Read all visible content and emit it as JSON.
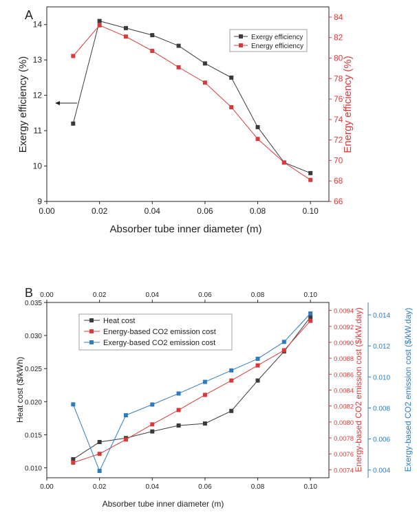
{
  "colors": {
    "black": "#3a3a3a",
    "red": "#d83a3a",
    "blue": "#2f7bbf",
    "axis": "#222222"
  },
  "chart_data": [
    {
      "panel_label": "A",
      "type": "line",
      "xlabel": "Absorber tube inner diameter (m)",
      "ylabel_left": "Exergy efficiency (%)",
      "ylabel_right": "Energy efficiency (%)",
      "xlim": [
        0.0,
        0.107
      ],
      "xticks": [
        "0.00",
        "0.02",
        "0.04",
        "0.06",
        "0.08",
        "0.10"
      ],
      "ylim_left": [
        9,
        14.5
      ],
      "yticks_left": [
        "9",
        "10",
        "11",
        "12",
        "13",
        "14"
      ],
      "ylim_right": [
        66,
        85
      ],
      "yticks_right": [
        "66",
        "68",
        "70",
        "72",
        "74",
        "76",
        "78",
        "80",
        "82",
        "84"
      ],
      "legend_position": "top-right",
      "annotation": "arrow pointing to left axis",
      "x": [
        0.01,
        0.02,
        0.03,
        0.04,
        0.05,
        0.06,
        0.07,
        0.08,
        0.09,
        0.1
      ],
      "series": [
        {
          "name": "Exergy efficiency",
          "axis": "left",
          "color": "black",
          "values": [
            11.2,
            14.1,
            13.9,
            13.7,
            13.4,
            12.9,
            12.5,
            11.1,
            10.1,
            9.8
          ]
        },
        {
          "name": "Energy efficiency",
          "axis": "right",
          "color": "red",
          "values": [
            80.2,
            83.2,
            82.1,
            80.7,
            79.1,
            77.6,
            75.2,
            72.1,
            69.8,
            68.1
          ]
        }
      ]
    },
    {
      "panel_label": "B",
      "type": "line",
      "xlabel": "Absorber tube inner diameter (m)",
      "ylabel_left": "Heat cost ($/kWh)",
      "ylabel_right": "Energy-based CO2 emission cost ($/kW.day)",
      "ylabel_right2": "Exergy-based CO2 emission cost ($/kW.day)",
      "xlim": [
        0.0,
        0.107
      ],
      "xticks": [
        "0.00",
        "0.02",
        "0.04",
        "0.06",
        "0.08",
        "0.10"
      ],
      "top_xticks": [
        "0.00",
        "0.02",
        "0.04",
        "0.06",
        "0.08",
        "0.10"
      ],
      "ylim_left": [
        0.0085,
        0.035
      ],
      "yticks_left": [
        "0.010",
        "0.015",
        "0.020",
        "0.025",
        "0.030",
        "0.035"
      ],
      "ylim_right": [
        0.0073,
        0.0095
      ],
      "yticks_right": [
        "0.0074",
        "0.0076",
        "0.0078",
        "0.0080",
        "0.0082",
        "0.0084",
        "0.0086",
        "0.0088",
        "0.0090",
        "0.0092",
        "0.0094"
      ],
      "ylim_right2": [
        0.0035,
        0.0148
      ],
      "yticks_right2": [
        "0.004",
        "0.006",
        "0.008",
        "0.010",
        "0.012",
        "0.014"
      ],
      "legend_position": "top-left",
      "x": [
        0.01,
        0.02,
        0.03,
        0.04,
        0.05,
        0.06,
        0.07,
        0.08,
        0.09,
        0.1
      ],
      "series": [
        {
          "name": "Heat cost",
          "axis": "left",
          "color": "black",
          "values": [
            0.0113,
            0.0139,
            0.0145,
            0.0155,
            0.0164,
            0.0167,
            0.0186,
            0.0232,
            0.0276,
            0.0328
          ]
        },
        {
          "name": "Energy-based CO2 emission cost",
          "axis": "right",
          "color": "red",
          "values": [
            0.00749,
            0.0076,
            0.00778,
            0.00797,
            0.00815,
            0.00834,
            0.00852,
            0.00871,
            0.0089,
            0.00927
          ]
        },
        {
          "name": "Exergy-based CO2 emission cost",
          "axis": "right2",
          "color": "blue",
          "values": [
            0.00823,
            0.00394,
            0.00753,
            0.00822,
            0.00893,
            0.00968,
            0.01042,
            0.01117,
            0.01226,
            0.01409
          ]
        }
      ]
    }
  ]
}
